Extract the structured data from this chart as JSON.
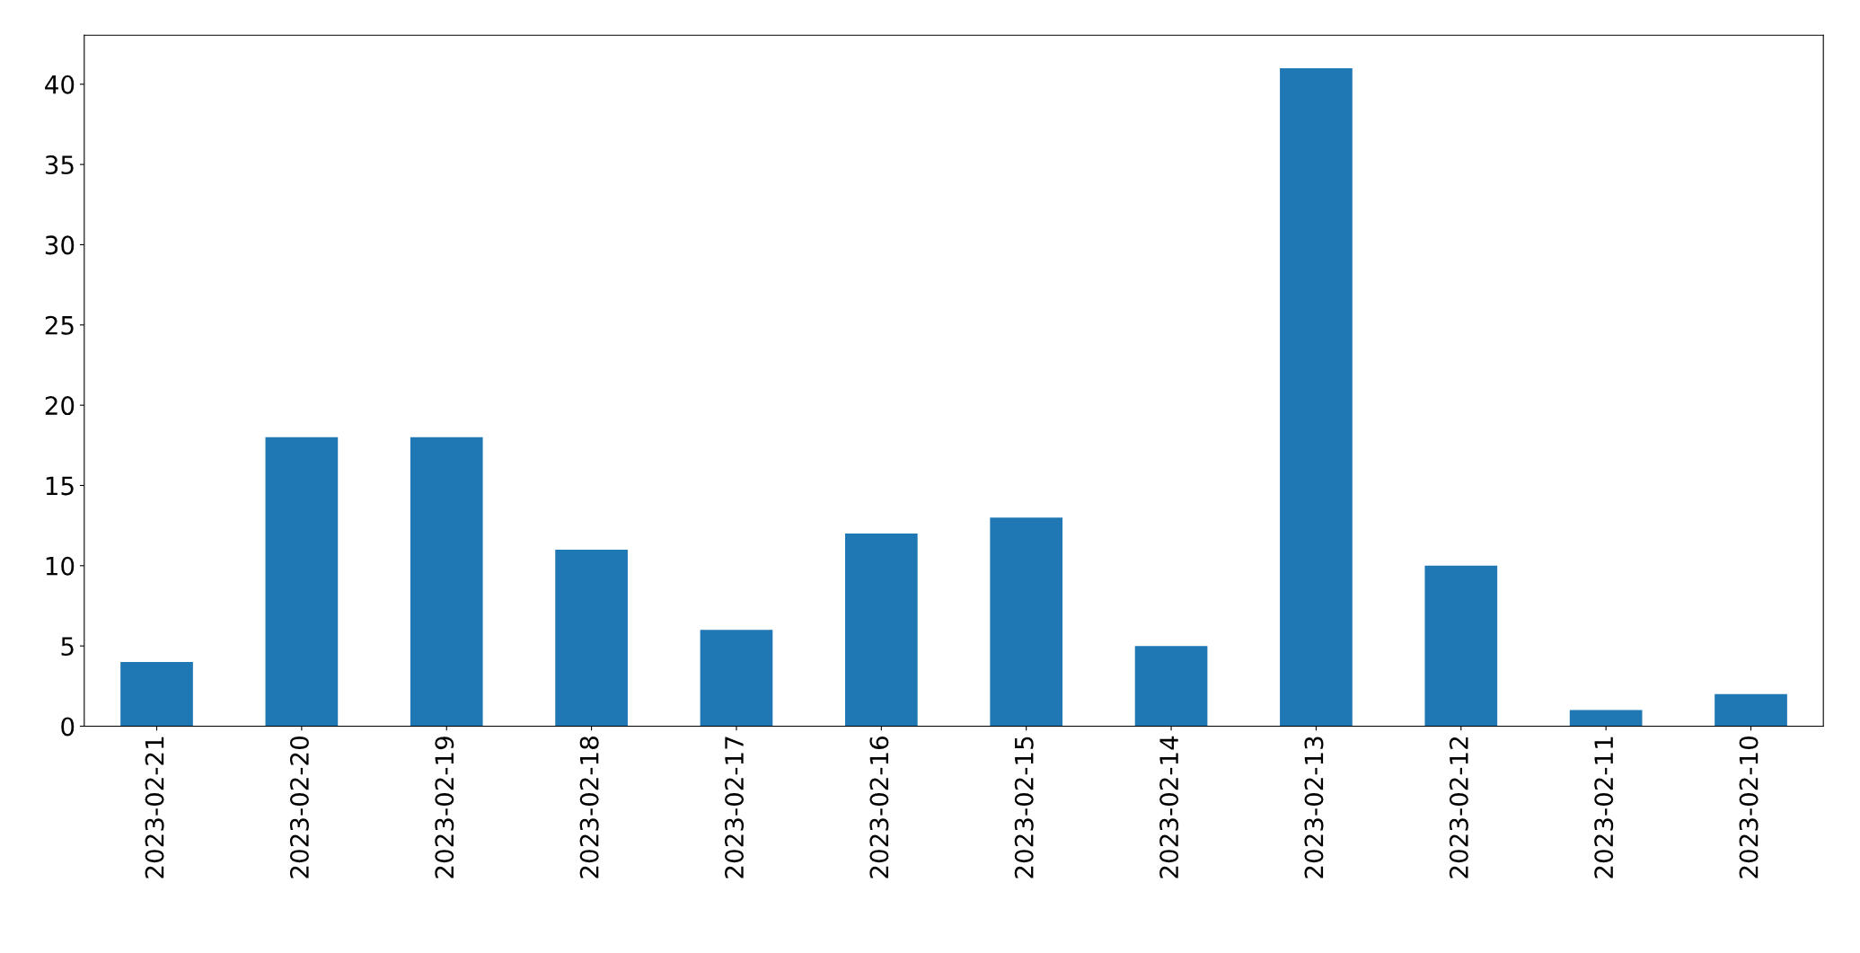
{
  "chart_data": {
    "type": "bar",
    "categories": [
      "2023-02-21",
      "2023-02-20",
      "2023-02-19",
      "2023-02-18",
      "2023-02-17",
      "2023-02-16",
      "2023-02-15",
      "2023-02-14",
      "2023-02-13",
      "2023-02-12",
      "2023-02-11",
      "2023-02-10"
    ],
    "values": [
      4,
      18,
      18,
      11,
      6,
      12,
      13,
      5,
      41,
      10,
      1,
      2
    ],
    "color": "#1f77b4",
    "ylim": [
      0,
      43.05
    ],
    "yticks": [
      0,
      5,
      10,
      15,
      20,
      25,
      30,
      35,
      40
    ],
    "grid": false,
    "legend": false
  }
}
